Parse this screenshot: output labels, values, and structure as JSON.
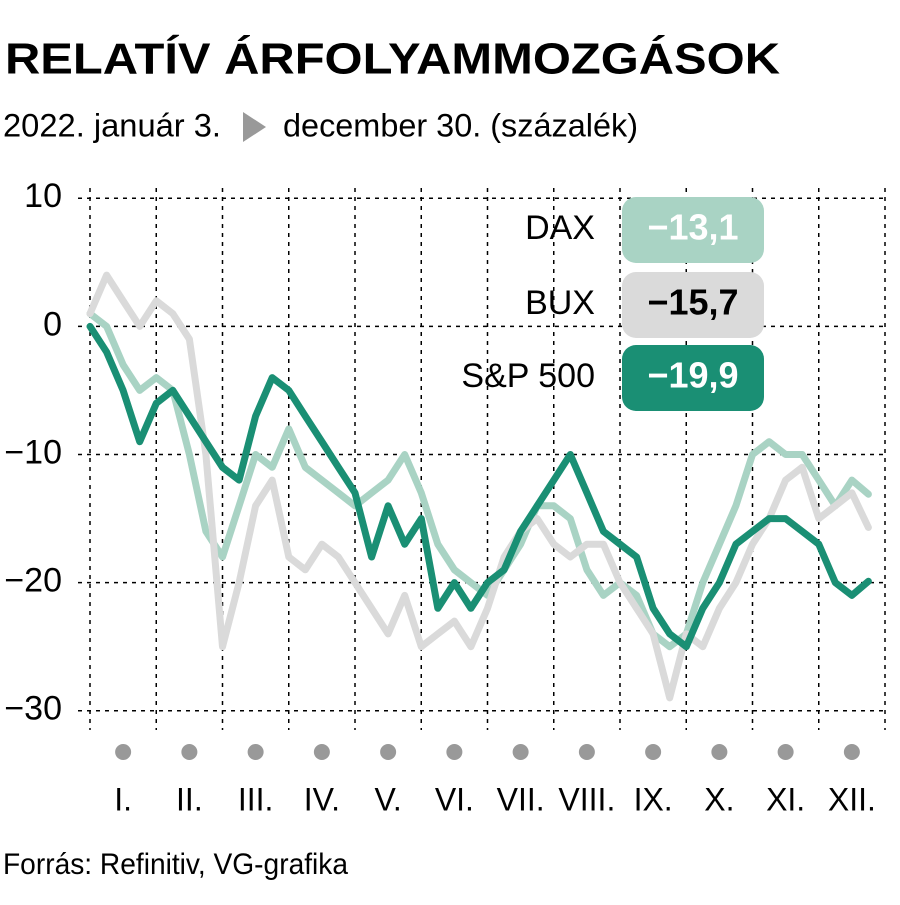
{
  "chart_data": {
    "type": "line",
    "title": "RELATÍV ÁRFOLYAMMOZGÁSOK",
    "subtitle_start": "2022. január 3.",
    "subtitle_end": "december 30. (százalék)",
    "source": "Forrás: Refinitiv, VG-grafika",
    "categories": [
      null,
      null,
      "I.",
      null,
      null,
      null,
      "II.",
      null,
      null,
      null,
      "III.",
      null,
      null,
      null,
      "IV.",
      null,
      null,
      null,
      "V.",
      null,
      null,
      null,
      "VI.",
      null,
      null,
      null,
      "VII.",
      null,
      null,
      null,
      "VIII.",
      null,
      null,
      null,
      "IX.",
      null,
      null,
      null,
      "X.",
      null,
      null,
      null,
      "XI.",
      null,
      null,
      null,
      "XII.",
      null
    ],
    "series": [
      {
        "name": "DAX",
        "color": "#a9d3c4",
        "end_label": "−13,1",
        "label_color": "#ffffff",
        "values": [
          1,
          0,
          -3,
          -5,
          -4,
          -5,
          -10,
          -16,
          -18,
          -14,
          -10,
          -11,
          -8,
          -11,
          -12,
          -13,
          -14,
          -13,
          -12,
          -10,
          -13,
          -17,
          -19,
          -20,
          -21,
          -19,
          -17,
          -14,
          -14,
          -15,
          -19,
          -21,
          -20,
          -21,
          -24,
          -25,
          -24,
          -20,
          -17,
          -14,
          -10,
          -9,
          -10,
          -10,
          -12,
          -14,
          -12,
          -13.1
        ]
      },
      {
        "name": "BUX",
        "color": "#dadada",
        "end_label": "−15,7",
        "label_color": "#000000",
        "values": [
          1,
          4,
          2,
          0,
          2,
          1,
          -1,
          -10,
          -25,
          -20,
          -14,
          -12,
          -18,
          -19,
          -17,
          -18,
          -20,
          -22,
          -24,
          -21,
          -25,
          -24,
          -23,
          -25,
          -22,
          -18,
          -16,
          -15,
          -17,
          -18,
          -17,
          -17,
          -20,
          -22,
          -24,
          -29,
          -24,
          -25,
          -22,
          -20,
          -17,
          -15,
          -12,
          -11,
          -15,
          -14,
          -13,
          -15.7
        ]
      },
      {
        "name": "S&P 500",
        "color": "#1a8f74",
        "end_label": "−19,9",
        "label_color": "#ffffff",
        "values": [
          0,
          -2,
          -5,
          -9,
          -6,
          -5,
          -7,
          -9,
          -11,
          -12,
          -7,
          -4,
          -5,
          -7,
          -9,
          -11,
          -13,
          -18,
          -14,
          -17,
          -15,
          -22,
          -20,
          -22,
          -20,
          -19,
          -16,
          -14,
          -12,
          -10,
          -13,
          -16,
          -17,
          -18,
          -22,
          -24,
          -25,
          -22,
          -20,
          -17,
          -16,
          -15,
          -15,
          -16,
          -17,
          -20,
          -21,
          -19.9
        ]
      }
    ],
    "ylim": [
      -30.8,
      10.8
    ],
    "yticks": [
      {
        "value": -30,
        "label": "−30"
      },
      {
        "value": -20,
        "label": "−20"
      },
      {
        "value": -10,
        "label": "−10"
      },
      0,
      10
    ],
    "grid": true
  }
}
